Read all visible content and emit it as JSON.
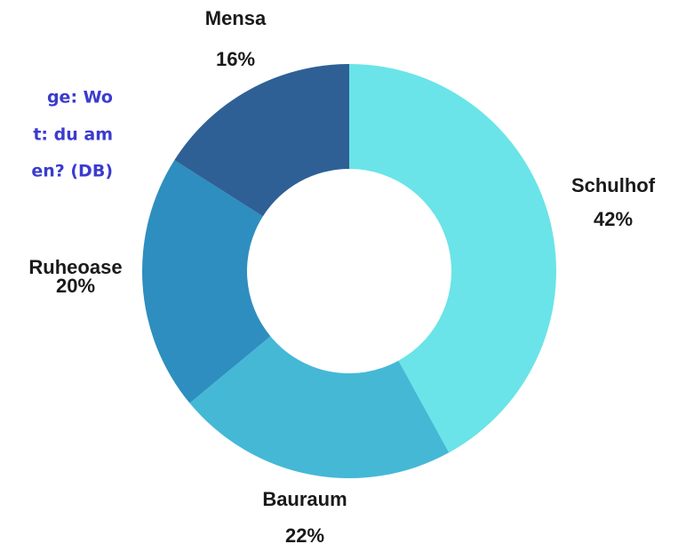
{
  "chart_data": {
    "type": "donut",
    "title_lines": [
      "ge: Wo",
      "t: du am",
      "en? (DB)"
    ],
    "categories": [
      "Schulhof",
      "Bauraum",
      "Ruheoase",
      "Mensa"
    ],
    "values": [
      42,
      22,
      20,
      16
    ],
    "value_labels": [
      "42%",
      "22%",
      "20%",
      "16%"
    ],
    "colors": [
      "#6ae4e8",
      "#45b8d6",
      "#2e8ebf",
      "#2e6096"
    ]
  }
}
